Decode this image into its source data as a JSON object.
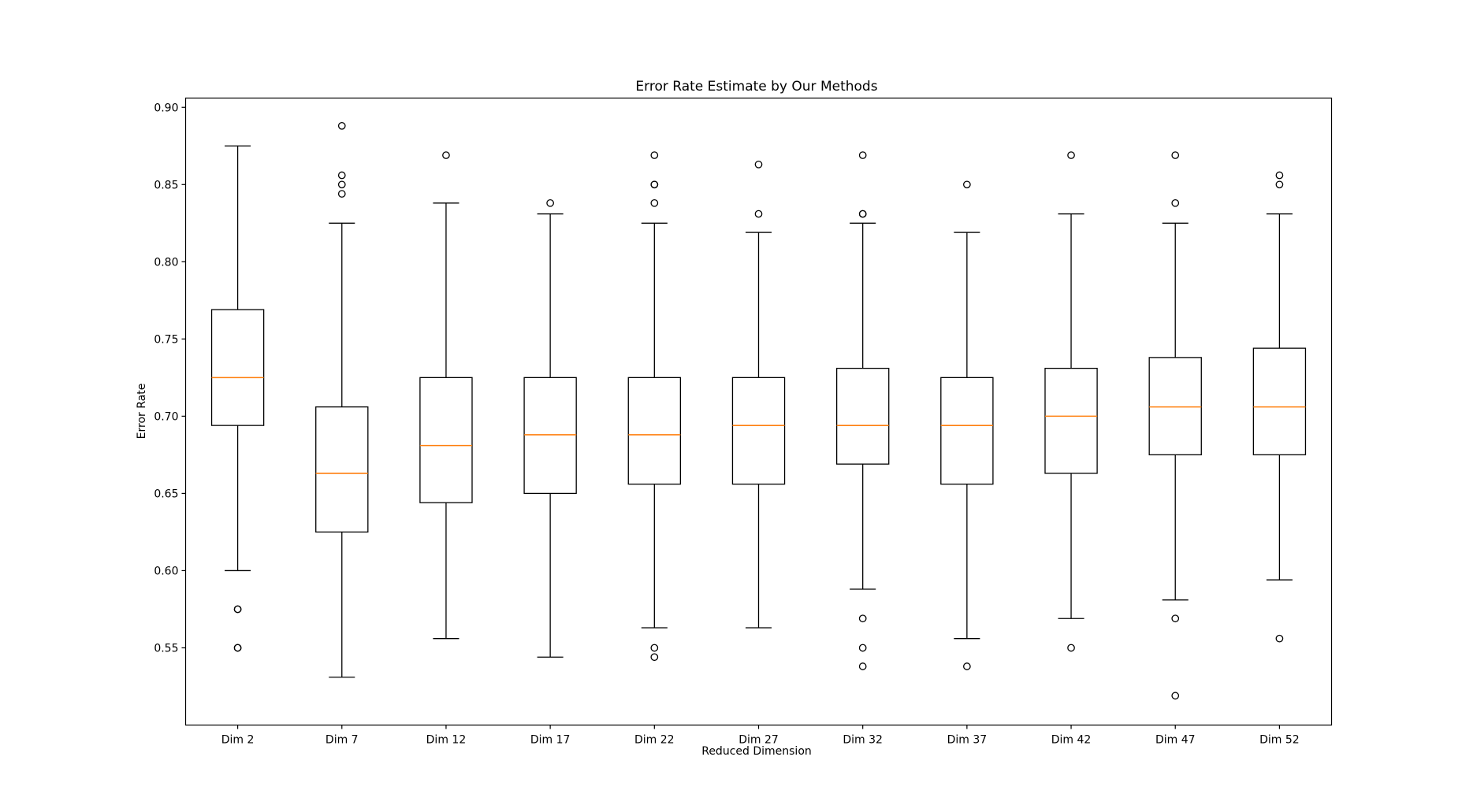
{
  "chart_data": {
    "type": "boxplot",
    "title": "Error Rate Estimate by Our Methods",
    "xlabel": "Reduced Dimension",
    "ylabel": "Error Rate",
    "ylim": [
      0.5,
      0.906
    ],
    "yticks": [
      0.55,
      0.6,
      0.65,
      0.7,
      0.75,
      0.8,
      0.85,
      0.9
    ],
    "ytick_labels": [
      "0.55",
      "0.60",
      "0.65",
      "0.70",
      "0.75",
      "0.80",
      "0.85",
      "0.90"
    ],
    "grid": false,
    "colors": {
      "box": "#000000",
      "median": "#ff7f0e",
      "flier": "#000000"
    },
    "categories": [
      "Dim 2",
      "Dim 7",
      "Dim 12",
      "Dim 17",
      "Dim 22",
      "Dim 27",
      "Dim 32",
      "Dim 37",
      "Dim 42",
      "Dim 47",
      "Dim 52"
    ],
    "boxes": [
      {
        "whislo": 0.6,
        "q1": 0.694,
        "median": 0.725,
        "q3": 0.769,
        "whishi": 0.875,
        "fliers": [
          0.575,
          0.575,
          0.55,
          0.55
        ]
      },
      {
        "whislo": 0.531,
        "q1": 0.625,
        "median": 0.663,
        "q3": 0.706,
        "whishi": 0.825,
        "fliers": [
          0.888,
          0.856,
          0.85,
          0.844
        ]
      },
      {
        "whislo": 0.556,
        "q1": 0.644,
        "median": 0.681,
        "q3": 0.725,
        "whishi": 0.838,
        "fliers": [
          0.869
        ]
      },
      {
        "whislo": 0.544,
        "q1": 0.65,
        "median": 0.688,
        "q3": 0.725,
        "whishi": 0.831,
        "fliers": [
          0.838
        ]
      },
      {
        "whislo": 0.563,
        "q1": 0.656,
        "median": 0.688,
        "q3": 0.725,
        "whishi": 0.825,
        "fliers": [
          0.869,
          0.85,
          0.85,
          0.838,
          0.55,
          0.544
        ]
      },
      {
        "whislo": 0.563,
        "q1": 0.656,
        "median": 0.694,
        "q3": 0.725,
        "whishi": 0.819,
        "fliers": [
          0.863,
          0.831
        ]
      },
      {
        "whislo": 0.588,
        "q1": 0.669,
        "median": 0.694,
        "q3": 0.731,
        "whishi": 0.825,
        "fliers": [
          0.869,
          0.831,
          0.831,
          0.569,
          0.55,
          0.538
        ]
      },
      {
        "whislo": 0.556,
        "q1": 0.656,
        "median": 0.694,
        "q3": 0.725,
        "whishi": 0.819,
        "fliers": [
          0.85,
          0.538
        ]
      },
      {
        "whislo": 0.569,
        "q1": 0.663,
        "median": 0.7,
        "q3": 0.731,
        "whishi": 0.831,
        "fliers": [
          0.869,
          0.55
        ]
      },
      {
        "whislo": 0.581,
        "q1": 0.675,
        "median": 0.706,
        "q3": 0.738,
        "whishi": 0.825,
        "fliers": [
          0.869,
          0.838,
          0.569,
          0.519
        ]
      },
      {
        "whislo": 0.594,
        "q1": 0.675,
        "median": 0.706,
        "q3": 0.744,
        "whishi": 0.831,
        "fliers": [
          0.856,
          0.85,
          0.556
        ]
      }
    ]
  }
}
